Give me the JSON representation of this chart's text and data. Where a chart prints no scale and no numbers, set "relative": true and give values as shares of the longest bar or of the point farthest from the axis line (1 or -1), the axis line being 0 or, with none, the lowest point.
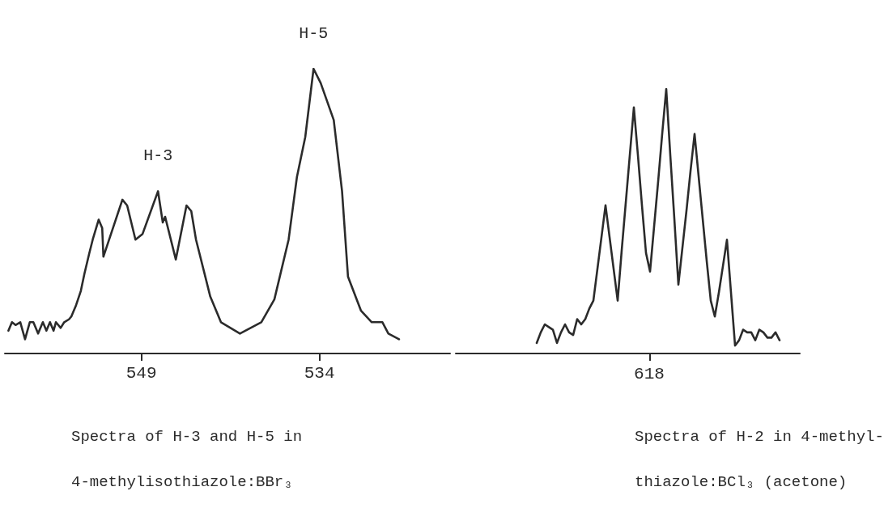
{
  "chart_data": [
    {
      "type": "line",
      "relative": true,
      "marker": "none",
      "line_style": "solid",
      "color": "#2b2b2b",
      "xlabel": "Spectra of H-3 and H-5 in\n4-methylisothiazole:BBr₃",
      "xlim": [
        560.5,
        523
      ],
      "xticks": [
        549,
        534
      ],
      "annotations": [
        {
          "text": "H-3",
          "x": 547.6,
          "y": 0.57
        },
        {
          "text": "H-5",
          "x": 534.5,
          "y": 1
        }
      ],
      "x": [
        560.2,
        559.9,
        559.6,
        559.2,
        558.8,
        558.4,
        558.1,
        557.7,
        557.3,
        557.0,
        556.7,
        556.4,
        556.2,
        555.8,
        555.5,
        555.1,
        554.9,
        554.5,
        554.1,
        553.8,
        553.4,
        553.1,
        552.6,
        552.3,
        552.2,
        550.6,
        550.2,
        549.5,
        548.9,
        547.6,
        547.2,
        547.0,
        546.1,
        545.2,
        544.8,
        544.4,
        543.2,
        542.3,
        540.7,
        538.9,
        537.8,
        536.6,
        535.9,
        535.2,
        534.5,
        533.9,
        532.8,
        532.1,
        531.6,
        530.5,
        529.6,
        528.7,
        528.2,
        527.3
      ],
      "values": [
        0.08,
        0.11,
        0.1,
        0.11,
        0.05,
        0.11,
        0.11,
        0.07,
        0.11,
        0.08,
        0.11,
        0.08,
        0.11,
        0.09,
        0.11,
        0.12,
        0.13,
        0.17,
        0.22,
        0.28,
        0.35,
        0.4,
        0.47,
        0.44,
        0.34,
        0.54,
        0.52,
        0.4,
        0.42,
        0.57,
        0.46,
        0.48,
        0.33,
        0.52,
        0.5,
        0.4,
        0.2,
        0.11,
        0.07,
        0.11,
        0.19,
        0.4,
        0.62,
        0.76,
        1,
        0.95,
        0.82,
        0.57,
        0.27,
        0.15,
        0.11,
        0.11,
        0.07,
        0.05
      ]
    },
    {
      "type": "line",
      "relative": true,
      "marker": "none",
      "line_style": "solid",
      "color": "#2b2b2b",
      "xlabel": "Spectra of H-2 in 4-methyl-\nthiazole:BCl₃ (acetone)",
      "annotations": [
        "618"
      ],
      "categories": [
        null,
        null,
        null,
        null,
        null,
        null,
        null,
        null,
        null,
        null,
        null,
        null,
        null,
        null,
        null,
        null,
        null,
        null,
        null,
        null,
        null,
        null,
        null,
        null,
        null,
        null,
        null,
        null,
        null,
        null,
        null,
        null,
        null,
        null,
        null,
        null,
        null,
        null,
        null,
        null,
        null,
        null,
        null,
        null,
        null,
        null,
        null,
        null,
        null,
        null,
        null,
        null,
        null,
        null,
        null,
        null,
        null,
        null,
        null,
        null,
        null,
        null,
        null,
        null,
        null,
        null,
        null,
        null,
        null,
        null,
        null,
        null,
        null,
        null,
        null,
        null,
        null,
        null,
        null,
        null,
        null,
        null,
        null,
        null,
        null,
        null
      ],
      "values": [
        null,
        null,
        null,
        null,
        null,
        null,
        null,
        null,
        null,
        null,
        null,
        null,
        null,
        null,
        null,
        null,
        null,
        null,
        null,
        null,
        0.04,
        0.08,
        0.11,
        0.1,
        0.09,
        0.04,
        0.08,
        0.11,
        0.08,
        0.07,
        0.13,
        0.11,
        0.13,
        0.17,
        0.2,
        0.32,
        0.44,
        0.56,
        0.44,
        0.32,
        0.2,
        0.39,
        0.57,
        0.75,
        0.93,
        0.75,
        0.56,
        0.38,
        0.31,
        0.48,
        0.65,
        0.83,
        1,
        0.75,
        0.51,
        0.26,
        0.4,
        0.54,
        0.69,
        0.83,
        0.67,
        0.51,
        0.35,
        0.2,
        0.14,
        0.23,
        0.33,
        0.43,
        0.23,
        0.03,
        0.05,
        0.09,
        0.08,
        0.08,
        0.05,
        0.09,
        0.08,
        0.06,
        0.06,
        0.08,
        0.05,
        null,
        null,
        null,
        null,
        null
      ]
    }
  ]
}
